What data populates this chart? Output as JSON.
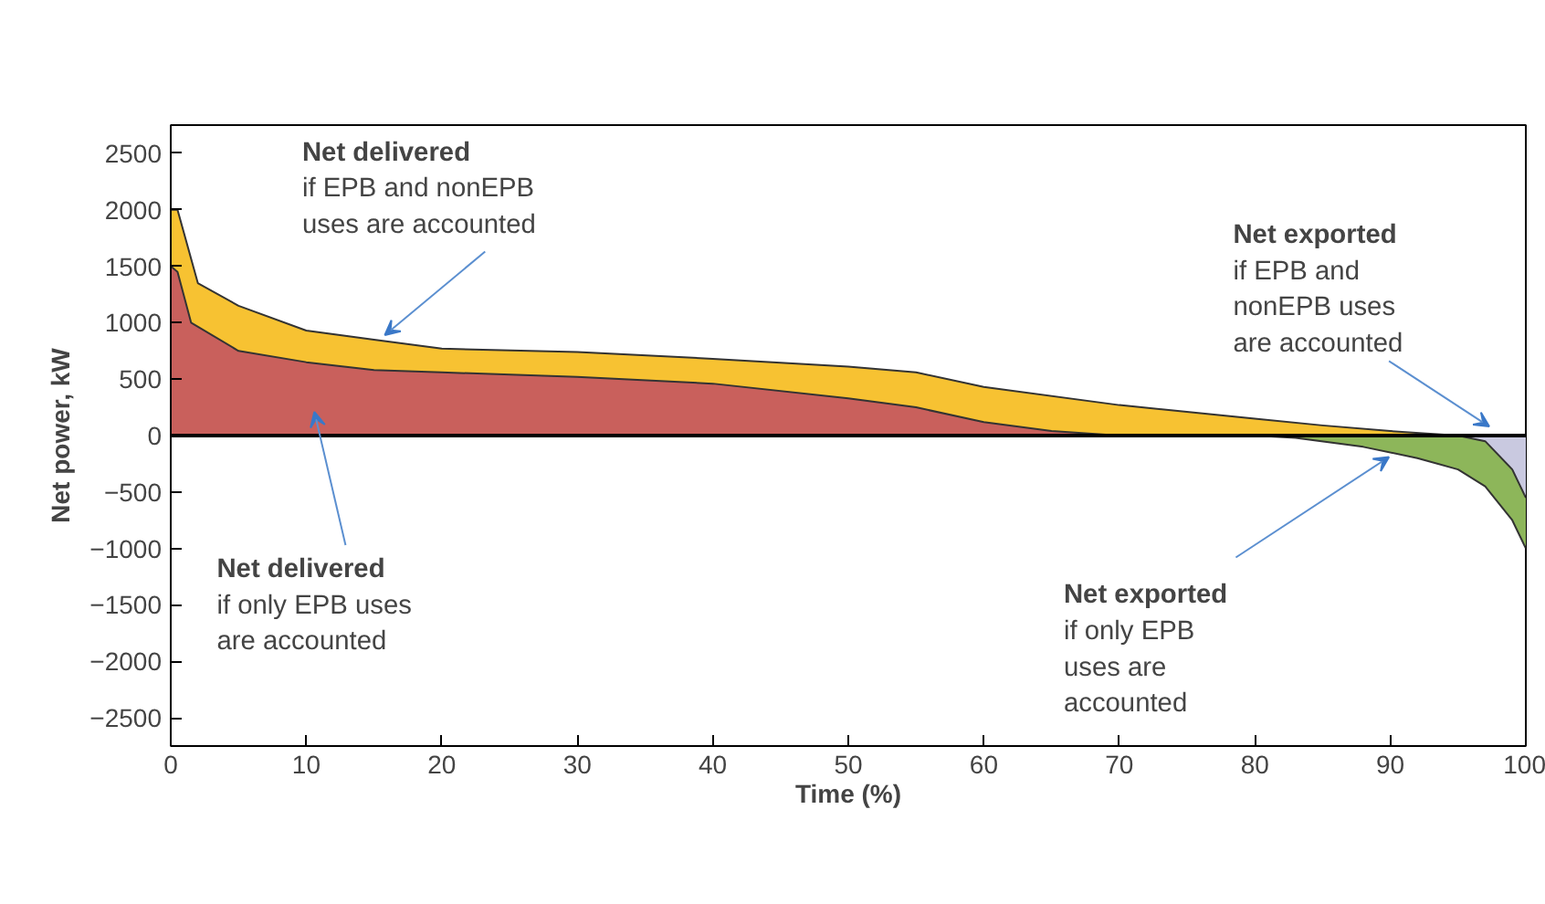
{
  "chart_data": {
    "type": "area",
    "xlabel": "Time (%)",
    "ylabel": "Net power, kW",
    "xlim": [
      0,
      100
    ],
    "ylim": [
      -2750,
      2750
    ],
    "xticks": [
      0,
      10,
      20,
      30,
      40,
      50,
      60,
      70,
      80,
      90,
      100
    ],
    "yticks": [
      -2500,
      -2000,
      -1500,
      -1000,
      -500,
      0,
      500,
      1000,
      1500,
      2000,
      2500
    ],
    "grid": false,
    "ref_lines": [
      {
        "axis": "y",
        "value": 0,
        "color": "#000000"
      }
    ],
    "series": [
      {
        "color": "#f7c232",
        "x": [
          0,
          0.5,
          2,
          5,
          10,
          15,
          20,
          30,
          40,
          50,
          55,
          60,
          70,
          80,
          85,
          90,
          95
        ],
        "values": [
          2000,
          2000,
          1350,
          1150,
          930,
          850,
          770,
          740,
          680,
          610,
          560,
          430,
          270,
          150,
          90,
          40,
          0
        ]
      },
      {
        "color": "#c9605c",
        "x": [
          0,
          0.5,
          1.5,
          5,
          10,
          15,
          20,
          30,
          40,
          50,
          55,
          60,
          65,
          70
        ],
        "values": [
          1500,
          1450,
          1000,
          750,
          650,
          580,
          560,
          520,
          460,
          330,
          250,
          120,
          40,
          0
        ]
      },
      {
        "color": "#8db65a",
        "x": [
          80,
          83,
          88,
          92,
          95,
          97,
          99,
          100
        ],
        "values": [
          0,
          -20,
          -100,
          -200,
          -300,
          -450,
          -750,
          -1000
        ]
      },
      {
        "color": "#c9c9e0",
        "x": [
          95,
          97,
          99,
          100
        ],
        "values": [
          0,
          -50,
          -300,
          -550
        ]
      }
    ],
    "annotations": [
      {
        "text": "Net delivered\nif EPB and nonEPB\nuses are accounted",
        "x": 15.8,
        "y": 890
      },
      "Net delivered\nif only EPB uses\nare accounted",
      {
        "text": "Net exported\nif EPB and\nnonEPB uses\nare accounted",
        "x": 97.3,
        "y": 80
      },
      {
        "text": "Net exported\nif only EPB\nuses are\naccounted",
        "x": 89.9,
        "y": -190
      }
    ]
  }
}
